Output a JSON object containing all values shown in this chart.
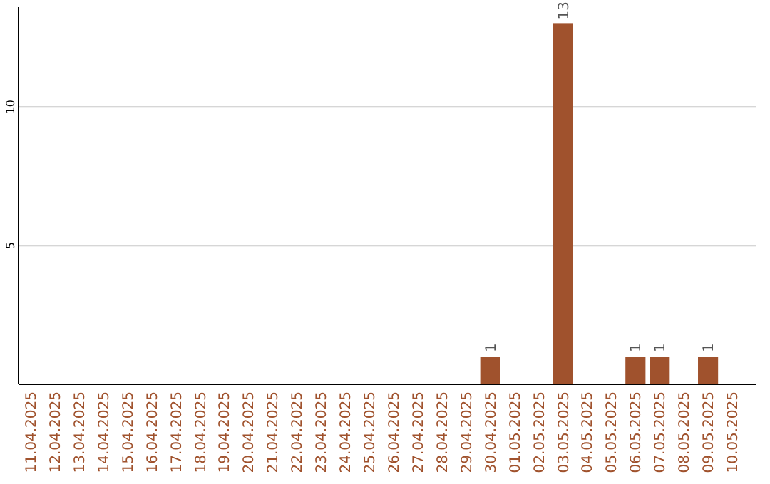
{
  "chart_data": {
    "type": "bar",
    "categories": [
      "11.04.2025",
      "12.04.2025",
      "13.04.2025",
      "14.04.2025",
      "15.04.2025",
      "16.04.2025",
      "17.04.2025",
      "18.04.2025",
      "19.04.2025",
      "20.04.2025",
      "21.04.2025",
      "22.04.2025",
      "23.04.2025",
      "24.04.2025",
      "25.04.2025",
      "26.04.2025",
      "27.04.2025",
      "28.04.2025",
      "29.04.2025",
      "30.04.2025",
      "01.05.2025",
      "02.05.2025",
      "03.05.2025",
      "04.05.2025",
      "05.05.2025",
      "06.05.2025",
      "07.05.2025",
      "08.05.2025",
      "09.05.2025",
      "10.05.2025"
    ],
    "values": [
      0,
      0,
      0,
      0,
      0,
      0,
      0,
      0,
      0,
      0,
      0,
      0,
      0,
      0,
      0,
      0,
      0,
      0,
      0,
      1,
      0,
      0,
      13,
      0,
      0,
      1,
      1,
      0,
      1,
      0
    ],
    "value_labels": [
      null,
      null,
      null,
      null,
      null,
      null,
      null,
      null,
      null,
      null,
      null,
      null,
      null,
      null,
      null,
      null,
      null,
      null,
      null,
      "1",
      null,
      null,
      "13",
      null,
      null,
      "1",
      "1",
      null,
      "1",
      null
    ],
    "color": "#a0522d",
    "ylim": [
      0,
      13.6
    ],
    "yticks": [
      5,
      10
    ],
    "grid": "y"
  }
}
